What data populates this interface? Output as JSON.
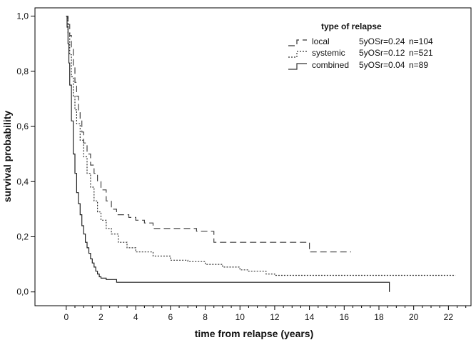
{
  "chart_data": {
    "type": "line",
    "xlabel": "time from relapse (years)",
    "ylabel": "survival probability",
    "xlim": [
      -1.8,
      23.3
    ],
    "ylim": [
      -0.05,
      1.03
    ],
    "xticks": [
      0,
      2,
      4,
      6,
      8,
      10,
      12,
      14,
      16,
      18,
      20,
      22
    ],
    "xtick_labels": [
      "0",
      "2",
      "4",
      "6",
      "8",
      "10",
      "12",
      "14",
      "16",
      "18",
      "20",
      "22"
    ],
    "yticks": [
      0,
      0.2,
      0.4,
      0.6,
      0.8,
      1.0
    ],
    "ytick_labels": [
      "0,0",
      "0,2",
      "0,4",
      "0,6",
      "0,8",
      "1,0"
    ],
    "minor_x_step": 0.5,
    "grid": false,
    "legend": {
      "title": "type of relapse",
      "position": "top-right",
      "entries": [
        {
          "label": "local",
          "stat": "5yOSr=0.24",
          "n": "n=104",
          "dash": "long-dash"
        },
        {
          "label": "systemic",
          "stat": "5yOSr=0.12",
          "n": "n=521",
          "dash": "dotted"
        },
        {
          "label": "combined",
          "stat": "5yOSr=0.04",
          "n": "n=89",
          "dash": "solid"
        }
      ]
    },
    "series": [
      {
        "name": "local",
        "dash": "long-dash",
        "color": "#444444",
        "x": [
          0,
          0.1,
          0.2,
          0.3,
          0.4,
          0.5,
          0.6,
          0.7,
          0.8,
          0.9,
          1.0,
          1.2,
          1.4,
          1.6,
          1.8,
          2.0,
          2.3,
          2.6,
          2.9,
          3.2,
          3.6,
          4.0,
          4.5,
          5.0,
          6.0,
          7.0,
          7.5,
          8.0,
          8.5,
          9.0,
          10.0,
          11.0,
          12.0,
          13.0,
          14.0,
          14.5,
          15.5,
          16.4
        ],
        "y": [
          1.0,
          0.97,
          0.93,
          0.88,
          0.82,
          0.76,
          0.71,
          0.66,
          0.62,
          0.58,
          0.54,
          0.5,
          0.46,
          0.43,
          0.4,
          0.37,
          0.33,
          0.3,
          0.28,
          0.28,
          0.27,
          0.26,
          0.25,
          0.23,
          0.23,
          0.23,
          0.22,
          0.22,
          0.18,
          0.18,
          0.18,
          0.18,
          0.18,
          0.18,
          0.145,
          0.145,
          0.145,
          0.145
        ]
      },
      {
        "name": "systemic",
        "dash": "dotted",
        "color": "#333333",
        "x": [
          0,
          0.1,
          0.2,
          0.3,
          0.4,
          0.5,
          0.6,
          0.8,
          1.0,
          1.2,
          1.4,
          1.6,
          1.8,
          2.0,
          2.3,
          2.6,
          3.0,
          3.5,
          4.0,
          5.0,
          6.0,
          7.0,
          8.0,
          9.0,
          9.5,
          10.0,
          10.5,
          11.0,
          11.5,
          12.0,
          13.0,
          14.0,
          16.0,
          18.0,
          20.0,
          22.4
        ],
        "y": [
          1.0,
          0.94,
          0.86,
          0.78,
          0.71,
          0.66,
          0.61,
          0.55,
          0.49,
          0.43,
          0.38,
          0.33,
          0.29,
          0.26,
          0.23,
          0.21,
          0.18,
          0.16,
          0.145,
          0.13,
          0.115,
          0.11,
          0.1,
          0.09,
          0.09,
          0.08,
          0.075,
          0.075,
          0.065,
          0.06,
          0.06,
          0.06,
          0.06,
          0.06,
          0.06,
          0.06
        ]
      },
      {
        "name": "combined",
        "dash": "solid",
        "color": "#222222",
        "x": [
          0,
          0.05,
          0.1,
          0.15,
          0.2,
          0.3,
          0.4,
          0.5,
          0.6,
          0.7,
          0.8,
          0.9,
          1.0,
          1.1,
          1.2,
          1.3,
          1.4,
          1.5,
          1.6,
          1.7,
          1.8,
          1.9,
          2.0,
          2.3,
          2.6,
          2.9,
          3.0,
          4.0,
          6.0,
          8.0,
          10.0,
          14.0,
          18.6
        ],
        "y": [
          1.0,
          0.96,
          0.9,
          0.83,
          0.75,
          0.62,
          0.5,
          0.43,
          0.36,
          0.32,
          0.28,
          0.24,
          0.21,
          0.18,
          0.16,
          0.14,
          0.12,
          0.105,
          0.09,
          0.075,
          0.065,
          0.055,
          0.05,
          0.045,
          0.045,
          0.035,
          0.035,
          0.035,
          0.035,
          0.035,
          0.035,
          0.035,
          0.035
        ],
        "final_drop_to": 0.0
      }
    ]
  }
}
